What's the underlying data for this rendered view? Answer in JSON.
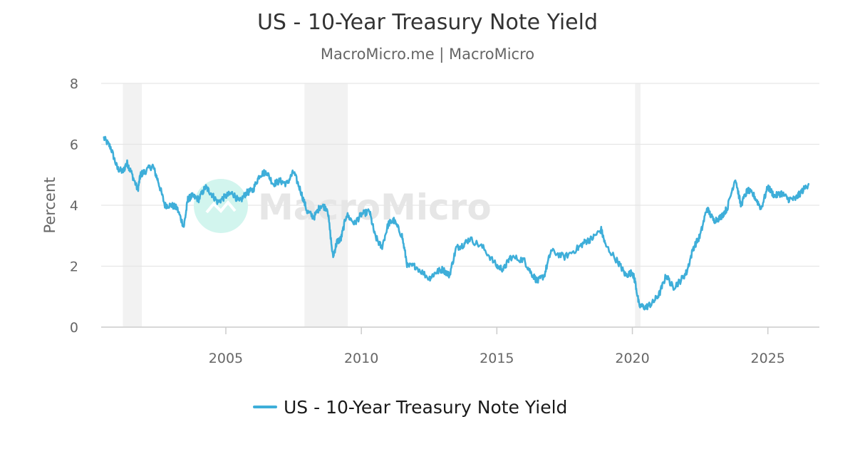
{
  "chart_data": {
    "type": "line",
    "title": "US - 10-Year Treasury Note Yield",
    "subtitle": "MacroMicro.me | MacroMicro",
    "ylabel": "Percent",
    "xlabel": "",
    "xlim": [
      2000.4,
      2026.9
    ],
    "ylim": [
      0,
      8
    ],
    "x_ticks": [
      2005,
      2010,
      2015,
      2020,
      2025
    ],
    "y_ticks": [
      0,
      2,
      4,
      6,
      8
    ],
    "grid": true,
    "legend_position": "bottom-center",
    "watermark": "MacroMicro",
    "recessions": [
      [
        2001.2,
        2001.9
      ],
      [
        2007.9,
        2009.5
      ],
      [
        2020.1,
        2020.3
      ]
    ],
    "series": [
      {
        "name": "US - 10-Year Treasury Note Yield",
        "color": "#3eaed9",
        "x": [
          2000.5,
          2000.75,
          2001.0,
          2001.2,
          2001.35,
          2001.5,
          2001.75,
          2001.85,
          2002.0,
          2002.3,
          2002.5,
          2002.75,
          2003.0,
          2003.2,
          2003.45,
          2003.6,
          2003.75,
          2004.0,
          2004.25,
          2004.45,
          2004.7,
          2005.0,
          2005.25,
          2005.5,
          2005.75,
          2006.0,
          2006.25,
          2006.5,
          2006.75,
          2007.0,
          2007.25,
          2007.5,
          2007.75,
          2008.0,
          2008.25,
          2008.5,
          2008.75,
          2008.95,
          2009.1,
          2009.25,
          2009.45,
          2009.75,
          2010.0,
          2010.3,
          2010.5,
          2010.75,
          2011.0,
          2011.2,
          2011.5,
          2011.7,
          2012.0,
          2012.5,
          2012.75,
          2013.0,
          2013.25,
          2013.5,
          2013.75,
          2014.0,
          2014.5,
          2015.0,
          2015.25,
          2015.5,
          2016.0,
          2016.25,
          2016.5,
          2016.75,
          2017.0,
          2017.5,
          2018.0,
          2018.25,
          2018.5,
          2018.85,
          2019.0,
          2019.5,
          2019.75,
          2020.0,
          2020.1,
          2020.25,
          2020.5,
          2020.75,
          2021.0,
          2021.25,
          2021.5,
          2021.75,
          2022.0,
          2022.25,
          2022.5,
          2022.75,
          2023.0,
          2023.25,
          2023.5,
          2023.8,
          2024.0,
          2024.25,
          2024.5,
          2024.75,
          2025.0,
          2025.25,
          2025.5,
          2025.75,
          2026.0,
          2026.2,
          2026.5
        ],
        "values": [
          6.2,
          5.9,
          5.2,
          5.1,
          5.4,
          5.1,
          4.5,
          5.0,
          5.1,
          5.3,
          4.8,
          4.0,
          4.0,
          3.9,
          3.3,
          4.2,
          4.3,
          4.2,
          4.6,
          4.4,
          4.1,
          4.3,
          4.4,
          4.1,
          4.4,
          4.5,
          5.0,
          5.1,
          4.7,
          4.8,
          4.7,
          5.1,
          4.5,
          3.8,
          3.6,
          4.0,
          3.9,
          2.3,
          2.8,
          2.9,
          3.7,
          3.4,
          3.7,
          3.8,
          3.0,
          2.6,
          3.4,
          3.5,
          3.0,
          2.0,
          2.0,
          1.6,
          1.8,
          1.9,
          1.7,
          2.6,
          2.7,
          2.9,
          2.6,
          2.0,
          1.9,
          2.3,
          2.2,
          1.8,
          1.5,
          1.7,
          2.5,
          2.3,
          2.6,
          2.8,
          2.9,
          3.2,
          2.7,
          2.1,
          1.7,
          1.8,
          1.5,
          0.7,
          0.65,
          0.8,
          1.1,
          1.7,
          1.3,
          1.5,
          1.8,
          2.6,
          3.0,
          3.9,
          3.5,
          3.6,
          3.9,
          4.9,
          4.0,
          4.5,
          4.3,
          3.9,
          4.6,
          4.3,
          4.4,
          4.2,
          4.2,
          4.4,
          4.7
        ]
      }
    ]
  }
}
